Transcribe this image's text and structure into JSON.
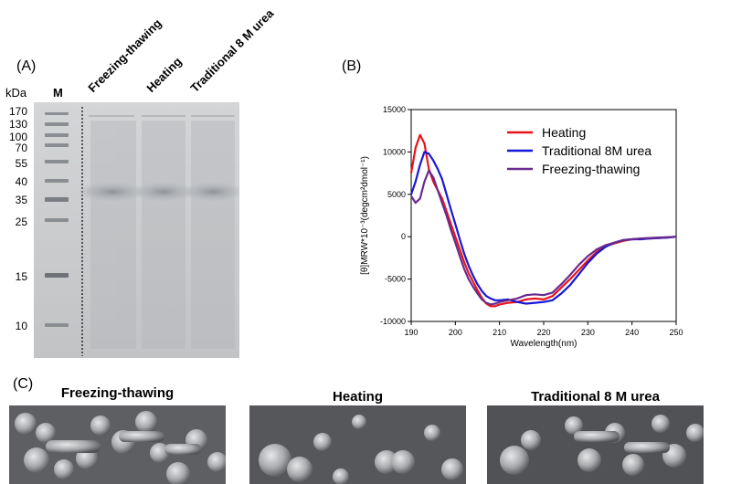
{
  "panels": {
    "a_label": "(A)",
    "b_label": "(B)",
    "c_label": "(C)"
  },
  "gel": {
    "unit_label": "kDa",
    "marker_lane_label": "M",
    "lanes": [
      "Freezing-thawing",
      "Heating",
      "Traditional 8 M urea"
    ],
    "markers": [
      "170",
      "130",
      "100",
      "70",
      "55",
      "40",
      "35",
      "25",
      "15",
      "10"
    ]
  },
  "chart_data": {
    "type": "line",
    "xlabel": "Wavelength(nm)",
    "ylabel": "[θ]MRW*10⁻³(degcm²dmol⁻¹)",
    "xlim": [
      190,
      250
    ],
    "ylim": [
      -10000,
      15000
    ],
    "xticks": [
      "190",
      "200",
      "210",
      "220",
      "230",
      "240",
      "250"
    ],
    "yticks": [
      "15000",
      "10000",
      "5000",
      "0",
      "-5000",
      "-10000"
    ],
    "legend_position": "top-right",
    "series": [
      {
        "name": "Heating",
        "color": "#e8141c",
        "x": [
          190,
          191,
          192,
          193,
          194,
          195,
          196,
          197,
          198,
          199,
          200,
          201,
          202,
          203,
          204,
          205,
          206,
          207,
          208,
          209,
          210,
          212,
          214,
          216,
          218,
          220,
          222,
          224,
          226,
          228,
          230,
          232,
          234,
          236,
          238,
          240,
          242,
          244,
          246,
          248,
          250
        ],
        "y": [
          7500,
          10500,
          12000,
          11000,
          8000,
          6500,
          5500,
          4500,
          3000,
          1500,
          0,
          -1500,
          -3000,
          -4300,
          -5300,
          -6300,
          -7200,
          -7900,
          -8200,
          -8200,
          -8000,
          -7800,
          -7700,
          -7400,
          -7300,
          -7400,
          -7000,
          -6000,
          -5000,
          -3900,
          -2800,
          -1800,
          -1100,
          -800,
          -500,
          -300,
          -250,
          -200,
          -150,
          -100,
          0
        ]
      },
      {
        "name": "Traditional 8M urea",
        "color": "#1717d6",
        "x": [
          190,
          191,
          192,
          193,
          194,
          195,
          196,
          197,
          198,
          199,
          200,
          201,
          202,
          203,
          204,
          205,
          206,
          207,
          208,
          209,
          210,
          212,
          214,
          216,
          218,
          220,
          222,
          224,
          226,
          228,
          230,
          232,
          234,
          236,
          238,
          240,
          242,
          244,
          246,
          248,
          250
        ],
        "y": [
          5000,
          6500,
          8500,
          10000,
          9800,
          9000,
          8000,
          6800,
          5000,
          3200,
          1500,
          -300,
          -2000,
          -3400,
          -4600,
          -5600,
          -6400,
          -7000,
          -7300,
          -7500,
          -7500,
          -7400,
          -7700,
          -7900,
          -7800,
          -7700,
          -7500,
          -6700,
          -5700,
          -4400,
          -3100,
          -2000,
          -1200,
          -700,
          -400,
          -300,
          -300,
          -200,
          -150,
          -100,
          0
        ]
      },
      {
        "name": "Freezing-thawing",
        "color": "#6a2a8e",
        "x": [
          190,
          191,
          192,
          193,
          194,
          195,
          196,
          197,
          198,
          199,
          200,
          201,
          202,
          203,
          204,
          205,
          206,
          207,
          208,
          209,
          210,
          212,
          214,
          216,
          218,
          220,
          222,
          224,
          226,
          228,
          230,
          232,
          234,
          236,
          238,
          240,
          242,
          244,
          246,
          248,
          250
        ],
        "y": [
          4800,
          4000,
          4500,
          6500,
          7800,
          7000,
          5500,
          4000,
          2500,
          800,
          -700,
          -2300,
          -3800,
          -5000,
          -5900,
          -6700,
          -7400,
          -7800,
          -8000,
          -7900,
          -7700,
          -7500,
          -7300,
          -6900,
          -6800,
          -6900,
          -6600,
          -5600,
          -4500,
          -3300,
          -2300,
          -1500,
          -1000,
          -700,
          -400,
          -300,
          -200,
          -150,
          -100,
          -50,
          0
        ]
      }
    ]
  },
  "sem": {
    "titles": [
      "Freezing-thawing",
      "Heating",
      "Traditional 8 M urea"
    ]
  }
}
